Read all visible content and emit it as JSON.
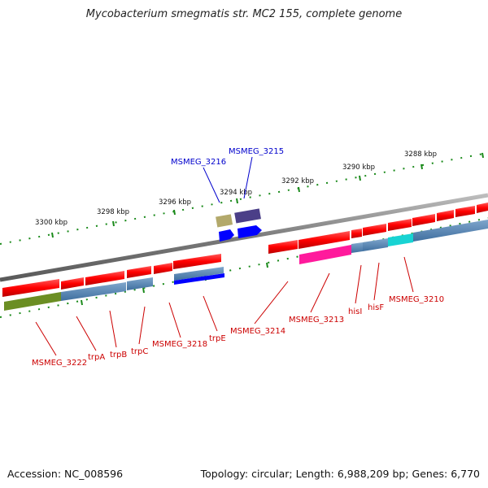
{
  "title": "Mycobacterium smegmatis str. MC2 155, complete genome",
  "footer": {
    "accession": "Accession: NC_008596",
    "summary": "Topology: circular; Length: 6,988,209 bp; Genes: 6,770"
  },
  "scale_labels": [
    "3300 kbp",
    "3298 kbp",
    "3296 kbp",
    "3294 kbp",
    "3292 kbp",
    "3290 kbp",
    "3288 kbp"
  ],
  "gene_labels": {
    "forward": [
      "MSMEG_3216",
      "MSMEG_3215"
    ],
    "reverse": [
      "MSMEG_3222",
      "trpA",
      "trpB",
      "trpC",
      "MSMEG_3218",
      "trpE",
      "MSMEG_3214",
      "MSMEG_3213",
      "hisI",
      "hisF",
      "MSMEG_3210"
    ]
  },
  "colors": {
    "backbone": "#808080",
    "gene": "#ff1a1a",
    "forward_label": "#0000cc",
    "reverse_label": "#cc0000",
    "scale_ticks": "#1a8a1a"
  }
}
